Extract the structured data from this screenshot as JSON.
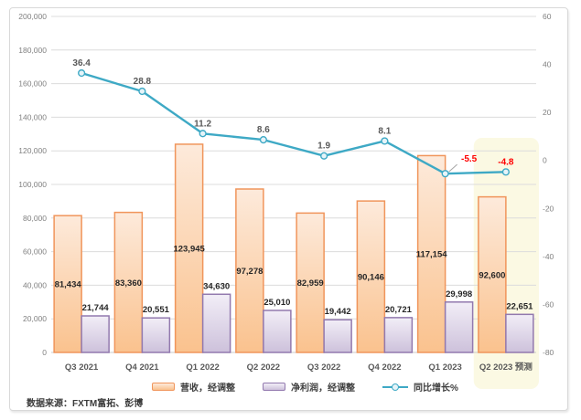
{
  "source_note": "数据来源：FXTM富拓、彭博",
  "chart_data": {
    "type": "combo-bar-line",
    "categories": [
      "Q3 2021",
      "Q4 2021",
      "Q1 2022",
      "Q2 2022",
      "Q3 2022",
      "Q4 2022",
      "Q1 2023",
      "Q2 2023 预测"
    ],
    "series": [
      {
        "name": "营收，经调整",
        "type": "bar",
        "axis": "left",
        "values": [
          81434,
          83360,
          123945,
          97278,
          82959,
          90146,
          117154,
          92600
        ],
        "labels": [
          "81,434",
          "83,360",
          "123,945",
          "97,278",
          "82,959",
          "90,146",
          "117,154",
          "92,600"
        ],
        "label_position": "center",
        "fill_top": "#FDEADB",
        "fill_bottom": "#FAC28E",
        "border": "#F0955B"
      },
      {
        "name": "净利润，经调整",
        "type": "bar",
        "axis": "left",
        "values": [
          21744,
          20551,
          34630,
          25010,
          19442,
          20721,
          29998,
          22651
        ],
        "labels": [
          "21,744",
          "20,551",
          "34,630",
          "25,010",
          "19,442",
          "20,721",
          "29,998",
          "22,651"
        ],
        "label_position": "above",
        "fill_top": "#F2EEF7",
        "fill_bottom": "#CDC1DB",
        "border": "#9279AE"
      },
      {
        "name": "同比增长%",
        "type": "line",
        "axis": "right",
        "values": [
          36.4,
          28.8,
          11.2,
          8.6,
          1.9,
          8.1,
          -5.5,
          -4.8
        ],
        "labels": [
          "36.4",
          "28.8",
          "11.2",
          "8.6",
          "1.9",
          "8.1",
          "-5.5",
          "-4.8"
        ],
        "label_colors": [
          "#595959",
          "#595959",
          "#595959",
          "#595959",
          "#595959",
          "#595959",
          "#FF0000",
          "#FF0000"
        ],
        "color": "#3EA9C5",
        "marker_fill": "#E6F4F9"
      }
    ],
    "left_axis": {
      "min": 0,
      "max": 200000,
      "step": 20000,
      "tick_labels": [
        "0",
        "20,000",
        "40,000",
        "60,000",
        "80,000",
        "100,000",
        "120,000",
        "140,000",
        "160,000",
        "180,000",
        "200,000"
      ]
    },
    "right_axis": {
      "min": -80,
      "max": 60,
      "step": 20,
      "tick_labels": [
        "-80",
        "-60",
        "-40",
        "-20",
        "0",
        "20",
        "40",
        "60"
      ]
    },
    "highlight": {
      "category_index": 7,
      "label": "Q2 2023 预测",
      "color": "#FBF9E3"
    },
    "grid": {
      "color": "#DCDCDC",
      "baseline_color": "#C9C9C9"
    },
    "text_colors": {
      "ticks": "#808080",
      "categories": "#595959",
      "bar_labels": "#262626"
    },
    "legend_position": "bottom"
  }
}
